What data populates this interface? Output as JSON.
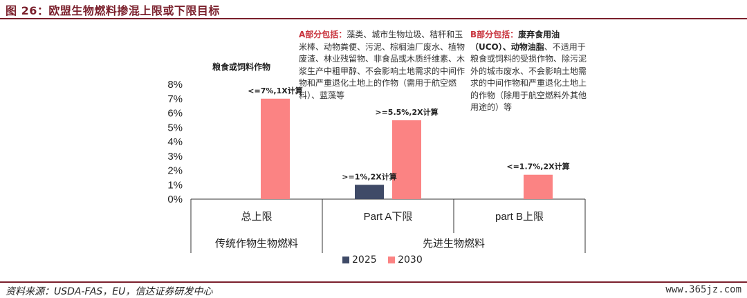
{
  "figure_title": "图 26：欧盟生物燃料掺混上限或下限目标",
  "chart_data": {
    "type": "bar",
    "y_unit": "%",
    "ylim": [
      0,
      8
    ],
    "yticks": [
      "8%",
      "7%",
      "6%",
      "5%",
      "4%",
      "3%",
      "2%",
      "1%",
      "0%"
    ],
    "categories": [
      "总上限",
      "Part A下限",
      "part B上限"
    ],
    "groups": [
      "传统作物生物燃料",
      "先进生物燃料"
    ],
    "group_spans": [
      [
        0,
        0
      ],
      [
        1,
        2
      ]
    ],
    "series": [
      {
        "name": "2025",
        "color": "#3f4a67",
        "values": [
          null,
          1,
          null
        ]
      },
      {
        "name": "2030",
        "color": "#fb8383",
        "values": [
          7,
          5.5,
          1.7
        ]
      }
    ],
    "data_labels": [
      {
        "category": 0,
        "series": 1,
        "text": "<=7%,1X计算"
      },
      {
        "category": 1,
        "series": 0,
        "text": ">=1%,2X计算"
      },
      {
        "category": 1,
        "series": 1,
        "text": ">=5.5%,2X计算"
      },
      {
        "category": 2,
        "series": 1,
        "text": "<=1.7%,2X计算"
      }
    ],
    "grid": false,
    "legend_position": "bottom"
  },
  "annotations": {
    "grain": "粮食或饲料作物",
    "noteA_lead": "A部分包括：",
    "noteA_body": "藻类、城市生物垃圾、秸秆和玉米棒、动物粪便、污泥、棕榈油厂废水、植物废渣、林业残留物、非食品或木质纤维素、木浆生产中粗甲醇、不会影响土地需求的中间作物和严重退化土地上的作物（需用于航空燃料）、蓝藻等",
    "noteB_lead": "B部分包括：",
    "noteB_hl1": "废弃食用油（UCO）、动物油脂",
    "noteB_body": "、不适用于粮食或饲料的受损作物、除污泥外的城市废水、不会影响土地需求的中间作物和严重退化土地上的作物（除用于航空燃料外其他用途的）等"
  },
  "source": "资料来源：USDA-FAS，EU，信达证券研发中心",
  "watermark": "www.365jz.com"
}
